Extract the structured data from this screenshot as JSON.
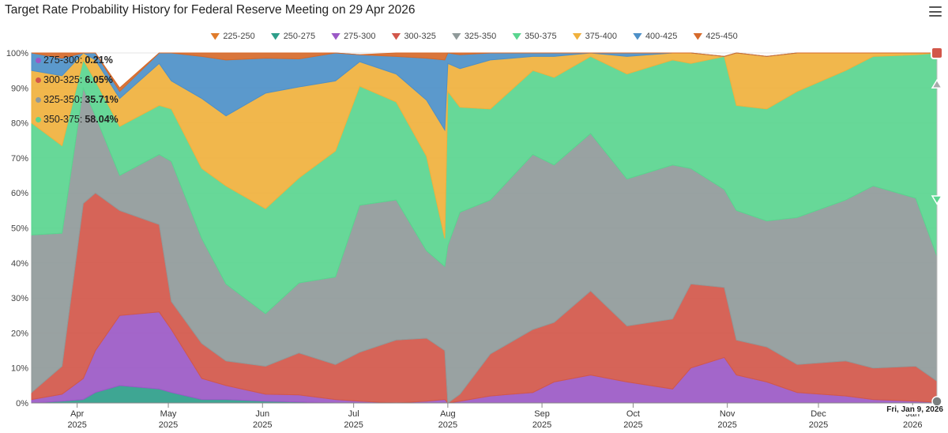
{
  "title": "Target Rate Probability History for Federal Reserve Meeting on 29 Apr 2026",
  "menu_icon": "hamburger-menu-icon",
  "tooltip_date": "Fri, Jan 9, 2026",
  "annotations": [
    {
      "label": "275-300",
      "value": "0.21%",
      "color": "#9b59c6"
    },
    {
      "label": "300-325",
      "value": "6.05%",
      "color": "#d2574a"
    },
    {
      "label": "325-350",
      "value": "35.71%",
      "color": "#909a9a"
    },
    {
      "label": "350-375",
      "value": "58.04%",
      "color": "#5ad58f"
    }
  ],
  "chart_data": {
    "type": "area",
    "stacked": true,
    "percent": true,
    "title": "Target Rate Probability History for Federal Reserve Meeting on 29 Apr 2026",
    "x_start": "2025-03-17",
    "x_end": "2026-01-09",
    "ylim": [
      0,
      100
    ],
    "yticks": [
      "0%",
      "10%",
      "20%",
      "30%",
      "40%",
      "50%",
      "60%",
      "70%",
      "80%",
      "90%",
      "100%"
    ],
    "xticks": [
      {
        "date": "2025-04-01",
        "month": "Apr",
        "year": "2025"
      },
      {
        "date": "2025-05-01",
        "month": "May",
        "year": "2025"
      },
      {
        "date": "2025-06-01",
        "month": "Jun",
        "year": "2025"
      },
      {
        "date": "2025-07-01",
        "month": "Jul",
        "year": "2025"
      },
      {
        "date": "2025-08-01",
        "month": "Aug",
        "year": "2025"
      },
      {
        "date": "2025-09-01",
        "month": "Sep",
        "year": "2025"
      },
      {
        "date": "2025-10-01",
        "month": "Oct",
        "year": "2025"
      },
      {
        "date": "2025-11-01",
        "month": "Nov",
        "year": "2025"
      },
      {
        "date": "2025-12-01",
        "month": "Dec",
        "year": "2025"
      },
      {
        "date": "2026-01-01",
        "month": "Jan",
        "year": "2026"
      }
    ],
    "legend_position": "top-center",
    "dates": [
      "2025-03-17",
      "2025-03-27",
      "2025-04-03",
      "2025-04-07",
      "2025-04-15",
      "2025-04-28",
      "2025-05-02",
      "2025-05-12",
      "2025-05-20",
      "2025-06-02",
      "2025-06-13",
      "2025-06-25",
      "2025-07-03",
      "2025-07-15",
      "2025-07-25",
      "2025-07-31",
      "2025-08-01",
      "2025-08-05",
      "2025-08-15",
      "2025-08-29",
      "2025-09-05",
      "2025-09-17",
      "2025-09-29",
      "2025-10-14",
      "2025-10-20",
      "2025-10-31",
      "2025-11-04",
      "2025-11-14",
      "2025-11-24",
      "2025-12-10",
      "2025-12-19",
      "2026-01-02",
      "2026-01-09"
    ],
    "series": [
      {
        "name": "225-250",
        "color": "#e07b2b",
        "values": [
          0,
          0,
          0,
          0,
          0,
          0,
          0,
          0,
          0,
          0,
          0,
          0,
          0,
          0,
          0,
          0,
          0,
          0,
          0,
          0,
          0,
          0,
          0,
          0,
          0,
          0,
          0,
          0,
          0,
          0,
          0,
          0,
          0
        ]
      },
      {
        "name": "250-275",
        "color": "#2e9e8a",
        "values": [
          0,
          0.5,
          1,
          3,
          5,
          4,
          3,
          1,
          1,
          0.5,
          0.3,
          0,
          0,
          0,
          0,
          0,
          0,
          0,
          0,
          0,
          0,
          0,
          0,
          0,
          0,
          0,
          0,
          0,
          0,
          0,
          0,
          0,
          0
        ]
      },
      {
        "name": "275-300",
        "color": "#9b59c6",
        "values": [
          1,
          2,
          6,
          12,
          20,
          22,
          18,
          6,
          4,
          2,
          2,
          1,
          0.5,
          0,
          0.5,
          1,
          0,
          0.5,
          2,
          3,
          6,
          8,
          6,
          4,
          10,
          13,
          8,
          6,
          3,
          2,
          1,
          0.5,
          0.21
        ]
      },
      {
        "name": "300-325",
        "color": "#d2574a",
        "values": [
          2,
          8,
          50,
          45,
          30,
          25,
          8,
          10,
          7,
          8,
          12,
          10,
          14,
          18,
          18,
          14,
          0,
          2,
          12,
          18,
          17,
          24,
          16,
          20,
          24,
          20,
          10,
          10,
          8,
          10,
          9,
          10,
          6.05
        ]
      },
      {
        "name": "325-350",
        "color": "#909a9a",
        "values": [
          45,
          38,
          33,
          22,
          10,
          20,
          40,
          30,
          22,
          15,
          20,
          25,
          42,
          40,
          25,
          24,
          45,
          52,
          44,
          50,
          45,
          45,
          42,
          44,
          33,
          28,
          37,
          36,
          42,
          46,
          52,
          48,
          35.71
        ]
      },
      {
        "name": "350-375",
        "color": "#5ad58f",
        "values": [
          32,
          25,
          8,
          10,
          14,
          14,
          15,
          20,
          28,
          30,
          30,
          36,
          34,
          28,
          27,
          8,
          44,
          30,
          26,
          24,
          25,
          22,
          30,
          30,
          30,
          38,
          30,
          32,
          36,
          37,
          37,
          41,
          58.04
        ]
      },
      {
        "name": "375-400",
        "color": "#f0b13d",
        "values": [
          15,
          20,
          2,
          6,
          8,
          12,
          8,
          20,
          20,
          33,
          26,
          20,
          7,
          8,
          16,
          31,
          8,
          11,
          14,
          4,
          6,
          1,
          5,
          2,
          3,
          0,
          15,
          15,
          11,
          5,
          1,
          0.5,
          0
        ]
      },
      {
        "name": "400-425",
        "color": "#4d90c8",
        "values": [
          5,
          5,
          0,
          2,
          2,
          3,
          8,
          12,
          16,
          10,
          8,
          8,
          2,
          5,
          12,
          20,
          3,
          4,
          2,
          1,
          1,
          0,
          1,
          0,
          0,
          0,
          0,
          0,
          0,
          0,
          0,
          0,
          0
        ]
      },
      {
        "name": "425-450",
        "color": "#d66a2b",
        "values": [
          0,
          1.5,
          0,
          0,
          1,
          0,
          0,
          1,
          2,
          1.5,
          1.7,
          0,
          0,
          1,
          1.5,
          2,
          0,
          0.5,
          0,
          0,
          0,
          0,
          0,
          0,
          0,
          0,
          0,
          0,
          0,
          0,
          0,
          0,
          0
        ]
      }
    ]
  }
}
